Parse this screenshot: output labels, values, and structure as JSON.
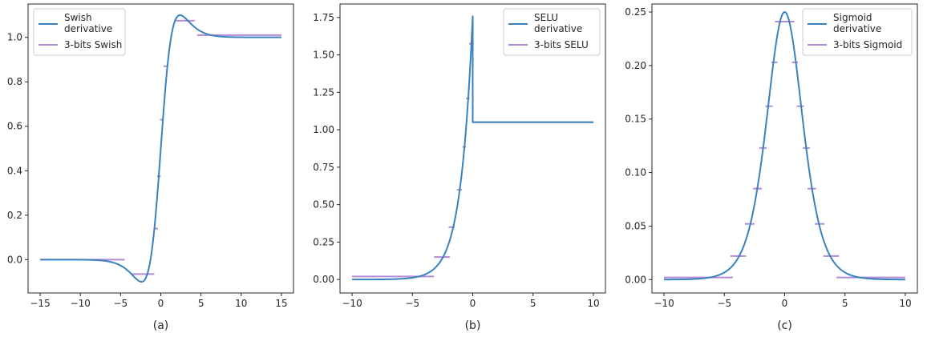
{
  "colors": {
    "derivative": "#3a82bd",
    "quantized": "#b38ad3"
  },
  "chart_data": [
    {
      "type": "line",
      "panel_label": "(a)",
      "function": "swish",
      "xlim": [
        -16.5,
        16.5
      ],
      "ylim": [
        -0.15,
        1.15
      ],
      "xticks": [
        -15,
        -10,
        -5,
        0,
        5,
        10,
        15
      ],
      "yticks": [
        0.0,
        0.2,
        0.4,
        0.6,
        0.8,
        1.0
      ],
      "ytick_labels": [
        "0.0",
        "0.2",
        "0.4",
        "0.6",
        "0.8",
        "1.0"
      ],
      "legend": [
        "Swish\nderivative",
        "3-bits Swish"
      ],
      "legend_loc": "upper left",
      "series": [
        {
          "name": "Swish\nderivative",
          "x_range": [
            -15,
            15
          ]
        },
        {
          "name": "3-bits Swish",
          "steps": [
            {
              "x": [
                -15,
                -4.5
              ],
              "y": 0.0
            },
            {
              "x": [
                -3.6,
                -0.8
              ],
              "y": -0.065
            },
            {
              "x": [
                -0.75,
                -0.35
              ],
              "y": 0.14
            },
            {
              "x": [
                -0.45,
                0.0
              ],
              "y": 0.375
            },
            {
              "x": [
                -0.1,
                0.3
              ],
              "y": 0.63
            },
            {
              "x": [
                0.35,
                0.9
              ],
              "y": 0.87
            },
            {
              "x": [
                1.9,
                4.2
              ],
              "y": 1.075
            },
            {
              "x": [
                4.5,
                15
              ],
              "y": 1.01
            }
          ]
        }
      ]
    },
    {
      "type": "line",
      "panel_label": "(b)",
      "function": "selu",
      "xlim": [
        -11,
        11
      ],
      "ylim": [
        -0.09,
        1.84
      ],
      "xticks": [
        -10,
        -5,
        0,
        5,
        10
      ],
      "yticks": [
        0.0,
        0.25,
        0.5,
        0.75,
        1.0,
        1.25,
        1.5,
        1.75
      ],
      "ytick_labels": [
        "0.00",
        "0.25",
        "0.50",
        "0.75",
        "1.00",
        "1.25",
        "1.50",
        "1.75"
      ],
      "legend": [
        "SELU\nderivative",
        "3-bits SELU"
      ],
      "legend_loc": "upper right",
      "series": [
        {
          "name": "SELU\nderivative",
          "x_range": [
            -10,
            10
          ]
        },
        {
          "name": "3-bits SELU",
          "steps": [
            {
              "x": [
                -10,
                -3.2
              ],
              "y": 0.02
            },
            {
              "x": [
                -3.2,
                -1.9
              ],
              "y": 0.15
            },
            {
              "x": [
                -2.0,
                -1.5
              ],
              "y": 0.35
            },
            {
              "x": [
                -1.3,
                -0.9
              ],
              "y": 0.6
            },
            {
              "x": [
                -0.85,
                -0.55
              ],
              "y": 0.885
            },
            {
              "x": [
                -0.55,
                -0.25
              ],
              "y": 1.21
            },
            {
              "x": [
                -0.3,
                0.0
              ],
              "y": 1.575
            },
            {
              "x": [
                0.0,
                10
              ],
              "y": 1.05
            }
          ]
        }
      ]
    },
    {
      "type": "line",
      "panel_label": "(c)",
      "function": "sigmoid",
      "xlim": [
        -11,
        11
      ],
      "ylim": [
        -0.0125,
        0.2575
      ],
      "xticks": [
        -10,
        -5,
        0,
        5,
        10
      ],
      "yticks": [
        0.0,
        0.05,
        0.1,
        0.15,
        0.2,
        0.25
      ],
      "ytick_labels": [
        "0.00",
        "0.05",
        "0.10",
        "0.15",
        "0.20",
        "0.25"
      ],
      "legend": [
        "Sigmoid\nderivative",
        "3-bits Sigmoid"
      ],
      "legend_loc": "upper right",
      "series": [
        {
          "name": "Sigmoid\nderivative",
          "x_range": [
            -10,
            10
          ]
        },
        {
          "name": "3-bits Sigmoid",
          "steps": [
            {
              "x": [
                -10,
                -4.3
              ],
              "y": 0.002
            },
            {
              "x": [
                -4.5,
                -3.2
              ],
              "y": 0.022
            },
            {
              "x": [
                -3.3,
                -2.5
              ],
              "y": 0.052
            },
            {
              "x": [
                -2.6,
                -1.9
              ],
              "y": 0.085
            },
            {
              "x": [
                -2.1,
                -1.5
              ],
              "y": 0.123
            },
            {
              "x": [
                -1.6,
                -1.0
              ],
              "y": 0.162
            },
            {
              "x": [
                -1.1,
                -0.6
              ],
              "y": 0.203
            },
            {
              "x": [
                -0.8,
                0.8
              ],
              "y": 0.241
            },
            {
              "x": [
                0.6,
                1.1
              ],
              "y": 0.203
            },
            {
              "x": [
                1.0,
                1.6
              ],
              "y": 0.162
            },
            {
              "x": [
                1.5,
                2.1
              ],
              "y": 0.123
            },
            {
              "x": [
                1.9,
                2.6
              ],
              "y": 0.085
            },
            {
              "x": [
                2.5,
                3.3
              ],
              "y": 0.052
            },
            {
              "x": [
                3.2,
                4.5
              ],
              "y": 0.022
            },
            {
              "x": [
                4.3,
                10
              ],
              "y": 0.002
            }
          ]
        }
      ]
    }
  ]
}
